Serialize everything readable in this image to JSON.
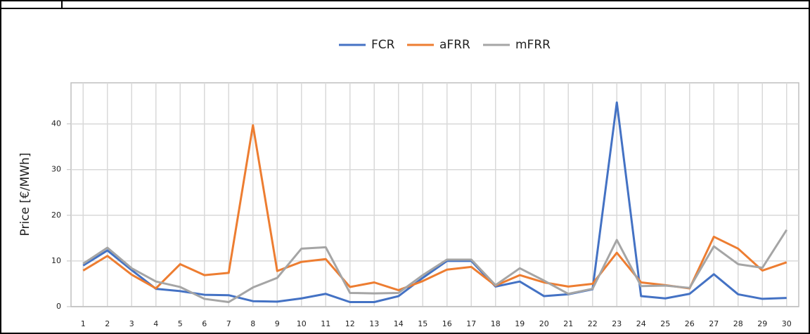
{
  "chart_data": {
    "type": "line",
    "y_label": "Price [€/MWh]",
    "categories": [
      "1",
      "2",
      "3",
      "4",
      "5",
      "6",
      "7",
      "8",
      "9",
      "10",
      "11",
      "12",
      "13",
      "14",
      "15",
      "16",
      "17",
      "18",
      "19",
      "20",
      "21",
      "22",
      "23",
      "24",
      "25",
      "26",
      "27",
      "28",
      "29",
      "30"
    ],
    "series": [
      {
        "name": "FCR",
        "color": "#4472c4",
        "values": [
          9.0,
          12.3,
          8.0,
          3.9,
          3.4,
          2.6,
          2.5,
          1.2,
          1.1,
          1.8,
          2.8,
          1.0,
          1.0,
          2.3,
          6.3,
          10.0,
          10.0,
          4.4,
          5.5,
          2.3,
          2.7,
          3.8,
          44.7,
          2.3,
          1.8,
          2.8,
          7.1,
          2.7,
          1.7,
          1.9
        ]
      },
      {
        "name": "aFRR",
        "color": "#ed7d31",
        "values": [
          7.9,
          11.1,
          7.0,
          4.0,
          9.3,
          6.9,
          7.4,
          39.7,
          7.8,
          9.8,
          10.4,
          4.3,
          5.3,
          3.6,
          5.6,
          8.1,
          8.7,
          4.6,
          6.9,
          5.3,
          4.4,
          5.0,
          11.8,
          5.3,
          4.7,
          4.0,
          15.3,
          12.7,
          7.9,
          9.7
        ]
      },
      {
        "name": "mFRR",
        "color": "#a5a5a5",
        "values": [
          9.4,
          12.9,
          8.4,
          5.5,
          4.3,
          1.7,
          1.0,
          4.2,
          6.3,
          12.7,
          13.0,
          3.0,
          2.9,
          3.0,
          6.9,
          10.3,
          10.3,
          4.7,
          8.4,
          5.7,
          2.8,
          3.9,
          14.6,
          4.5,
          4.6,
          4.1,
          13.2,
          9.3,
          8.5,
          16.8
        ]
      }
    ],
    "ylim": [
      0,
      49
    ],
    "yticks": [
      0,
      10,
      20,
      30,
      40
    ],
    "grid": true,
    "legend": "top"
  }
}
